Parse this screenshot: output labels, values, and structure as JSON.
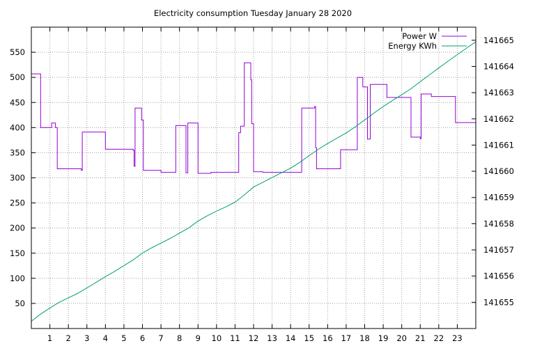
{
  "chart_data": {
    "type": "line",
    "title": "Electricity consumption Tuesday January 28 2020",
    "xlabel": "",
    "ylabel": "",
    "y2label": "",
    "xlim": [
      0,
      24
    ],
    "ylim": [
      0,
      600
    ],
    "y2lim": [
      141654.0,
      141665.5
    ],
    "grid": true,
    "legend_position": "top-right",
    "x_ticks": [
      1,
      2,
      3,
      4,
      5,
      6,
      7,
      8,
      9,
      10,
      11,
      12,
      13,
      14,
      15,
      16,
      17,
      18,
      19,
      20,
      21,
      22,
      23
    ],
    "y_ticks": [
      50,
      100,
      150,
      200,
      250,
      300,
      350,
      400,
      450,
      500,
      550
    ],
    "y2_ticks": [
      141655,
      141656,
      141657,
      141658,
      141659,
      141660,
      141661,
      141662,
      141663,
      141664,
      141665
    ],
    "series": [
      {
        "name": "Power W",
        "axis": "y",
        "color": "#9400d3",
        "step": true,
        "x": [
          0,
          0.5,
          1.1,
          1.3,
          1.4,
          2.7,
          2.75,
          4.0,
          5.5,
          5.55,
          5.6,
          5.95,
          6.05,
          7.0,
          7.8,
          8.35,
          8.45,
          9.0,
          9.7,
          11.2,
          11.3,
          11.5,
          11.85,
          11.9,
          12.0,
          12.5,
          14.6,
          15.3,
          15.35,
          15.4,
          16.7,
          17.6,
          17.9,
          18.15,
          18.3,
          18.5,
          19.2,
          20.5,
          21.0,
          21.05,
          21.6,
          22.9,
          24.0
        ],
        "y": [
          507,
          400,
          409,
          400,
          318,
          315,
          391,
          357,
          355,
          323,
          439,
          415,
          315,
          311,
          404,
          310,
          409,
          309,
          311,
          390,
          403,
          529,
          495,
          408,
          312,
          311,
          439,
          442,
          360,
          318,
          356,
          500,
          481,
          377,
          486,
          486,
          460,
          381,
          378,
          467,
          462,
          410,
          410
        ]
      },
      {
        "name": "Energy KWh",
        "axis": "y2",
        "color": "#009e73",
        "step": false,
        "x": [
          0,
          0.5,
          1,
          1.5,
          2,
          2.5,
          3,
          3.5,
          4,
          4.5,
          5,
          5.5,
          6,
          6.5,
          7,
          7.5,
          8,
          8.5,
          9,
          9.5,
          10,
          10.5,
          11,
          11.5,
          12,
          12.5,
          13,
          13.5,
          14,
          14.5,
          15,
          15.5,
          16,
          16.5,
          17,
          17.5,
          18,
          18.5,
          19,
          19.5,
          20,
          20.5,
          21,
          21.5,
          22,
          22.5,
          23,
          23.5,
          24
        ],
        "y": [
          141654.28,
          141654.55,
          141654.78,
          141655.0,
          141655.17,
          141655.34,
          141655.55,
          141655.76,
          141655.98,
          141656.18,
          141656.4,
          141656.62,
          141656.88,
          141657.08,
          141657.26,
          141657.44,
          141657.64,
          141657.84,
          141658.1,
          141658.3,
          141658.48,
          141658.64,
          141658.82,
          141659.1,
          141659.4,
          141659.58,
          141659.76,
          141659.94,
          141660.12,
          141660.34,
          141660.6,
          141660.84,
          141661.06,
          141661.26,
          141661.46,
          141661.7,
          141661.96,
          141662.22,
          141662.47,
          141662.7,
          141662.92,
          141663.15,
          141663.42,
          141663.68,
          141663.94,
          141664.2,
          141664.45,
          141664.7,
          141664.94
        ]
      }
    ]
  }
}
